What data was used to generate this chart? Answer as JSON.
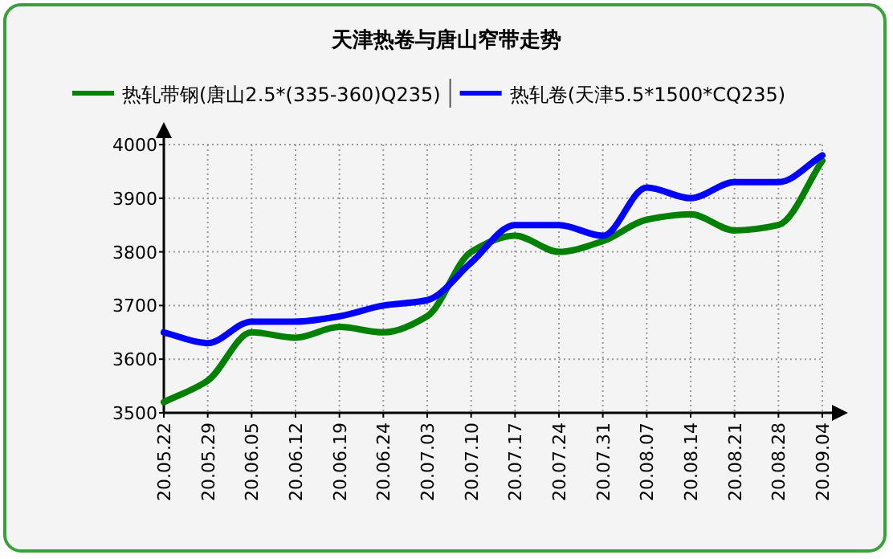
{
  "chart_data": {
    "type": "line",
    "title": "天津热卷与唐山窄带走势",
    "categories": [
      "20.05.22",
      "20.05.29",
      "20.06.05",
      "20.06.12",
      "20.06.19",
      "20.06.24",
      "20.07.03",
      "20.07.10",
      "20.07.17",
      "20.07.24",
      "20.07.31",
      "20.08.07",
      "20.08.14",
      "20.08.21",
      "20.08.28",
      "20.09.04"
    ],
    "series": [
      {
        "name": "热轧带钢(唐山2.5*(335-360)Q235)",
        "color": "#008000",
        "values": [
          3520,
          3560,
          3650,
          3640,
          3660,
          3650,
          3680,
          3800,
          3830,
          3800,
          3820,
          3860,
          3870,
          3840,
          3850,
          3970
        ]
      },
      {
        "name": "热轧卷(天津5.5*1500*CQ235)",
        "color": "#0000ff",
        "values": [
          3650,
          3630,
          3670,
          3670,
          3680,
          3700,
          3710,
          3780,
          3850,
          3850,
          3830,
          3920,
          3900,
          3930,
          3930,
          3980
        ]
      }
    ],
    "ylim": [
      3500,
      4000
    ],
    "yticks": [
      3500,
      3600,
      3700,
      3800,
      3900,
      4000
    ],
    "grid": true,
    "legend": "top",
    "marker": "none",
    "line_style": "solid"
  }
}
